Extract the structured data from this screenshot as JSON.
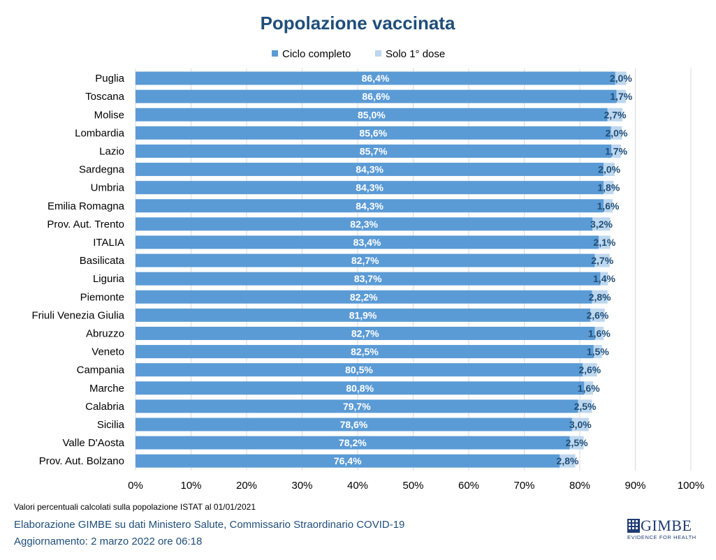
{
  "colors": {
    "primary": "#5b9bd5",
    "secondary": "#bdd7ee",
    "text_dark": "#1f4e79",
    "grid": "#d9d9d9"
  },
  "chart_data": {
    "type": "bar",
    "orientation": "horizontal",
    "stacked": true,
    "title": "Popolazione vaccinata",
    "categories": [
      "Puglia",
      "Toscana",
      "Molise",
      "Lombardia",
      "Lazio",
      "Sardegna",
      "Umbria",
      "Emilia Romagna",
      "Prov. Aut. Trento",
      "ITALIA",
      "Basilicata",
      "Liguria",
      "Piemonte",
      "Friuli Venezia Giulia",
      "Abruzzo",
      "Veneto",
      "Campania",
      "Marche",
      "Calabria",
      "Sicilia",
      "Valle D'Aosta",
      "Prov. Aut. Bolzano"
    ],
    "series": [
      {
        "name": "Ciclo completo",
        "values": [
          86.4,
          86.6,
          85.0,
          85.6,
          85.7,
          84.3,
          84.3,
          84.3,
          82.3,
          83.4,
          82.7,
          83.7,
          82.2,
          81.9,
          82.7,
          82.5,
          80.5,
          80.8,
          79.7,
          78.6,
          78.2,
          76.4
        ],
        "labels": [
          "86,4%",
          "86,6%",
          "85,0%",
          "85,6%",
          "85,7%",
          "84,3%",
          "84,3%",
          "84,3%",
          "82,3%",
          "83,4%",
          "82,7%",
          "83,7%",
          "82,2%",
          "81,9%",
          "82,7%",
          "82,5%",
          "80,5%",
          "80,8%",
          "79,7%",
          "78,6%",
          "78,2%",
          "76,4%"
        ]
      },
      {
        "name": "Solo 1° dose",
        "values": [
          2.0,
          1.7,
          2.7,
          2.0,
          1.7,
          2.0,
          1.8,
          1.6,
          3.2,
          2.1,
          2.7,
          1.4,
          2.8,
          2.6,
          1.6,
          1.5,
          2.6,
          1.6,
          2.5,
          3.0,
          2.5,
          2.8
        ],
        "labels": [
          "2,0%",
          "1,7%",
          "2,7%",
          "2,0%",
          "1,7%",
          "2,0%",
          "1,8%",
          "1,6%",
          "3,2%",
          "2,1%",
          "2,7%",
          "1,4%",
          "2,8%",
          "2,6%",
          "1,6%",
          "1,5%",
          "2,6%",
          "1,6%",
          "2,5%",
          "3,0%",
          "2,5%",
          "2,8%"
        ]
      }
    ],
    "xlim": [
      0,
      100
    ],
    "x_ticks": [
      0,
      10,
      20,
      30,
      40,
      50,
      60,
      70,
      80,
      90,
      100
    ],
    "x_tick_labels": [
      "0%",
      "10%",
      "20%",
      "30%",
      "40%",
      "50%",
      "60%",
      "70%",
      "80%",
      "90%",
      "100%"
    ],
    "grid": true,
    "legend_position": "top-center"
  },
  "footer": {
    "note": "Valori percentuali calcolati sulla popolazione ISTAT al 01/01/2021",
    "source": "Elaborazione GIMBE su dati Ministero Salute, Commissario Straordinario  COVID-19",
    "updated": "Aggiornamento:  2 marzo 2022 ore 06:18"
  },
  "logo": {
    "name": "GIMBE",
    "tagline": "EVIDENCE FOR HEALTH"
  }
}
